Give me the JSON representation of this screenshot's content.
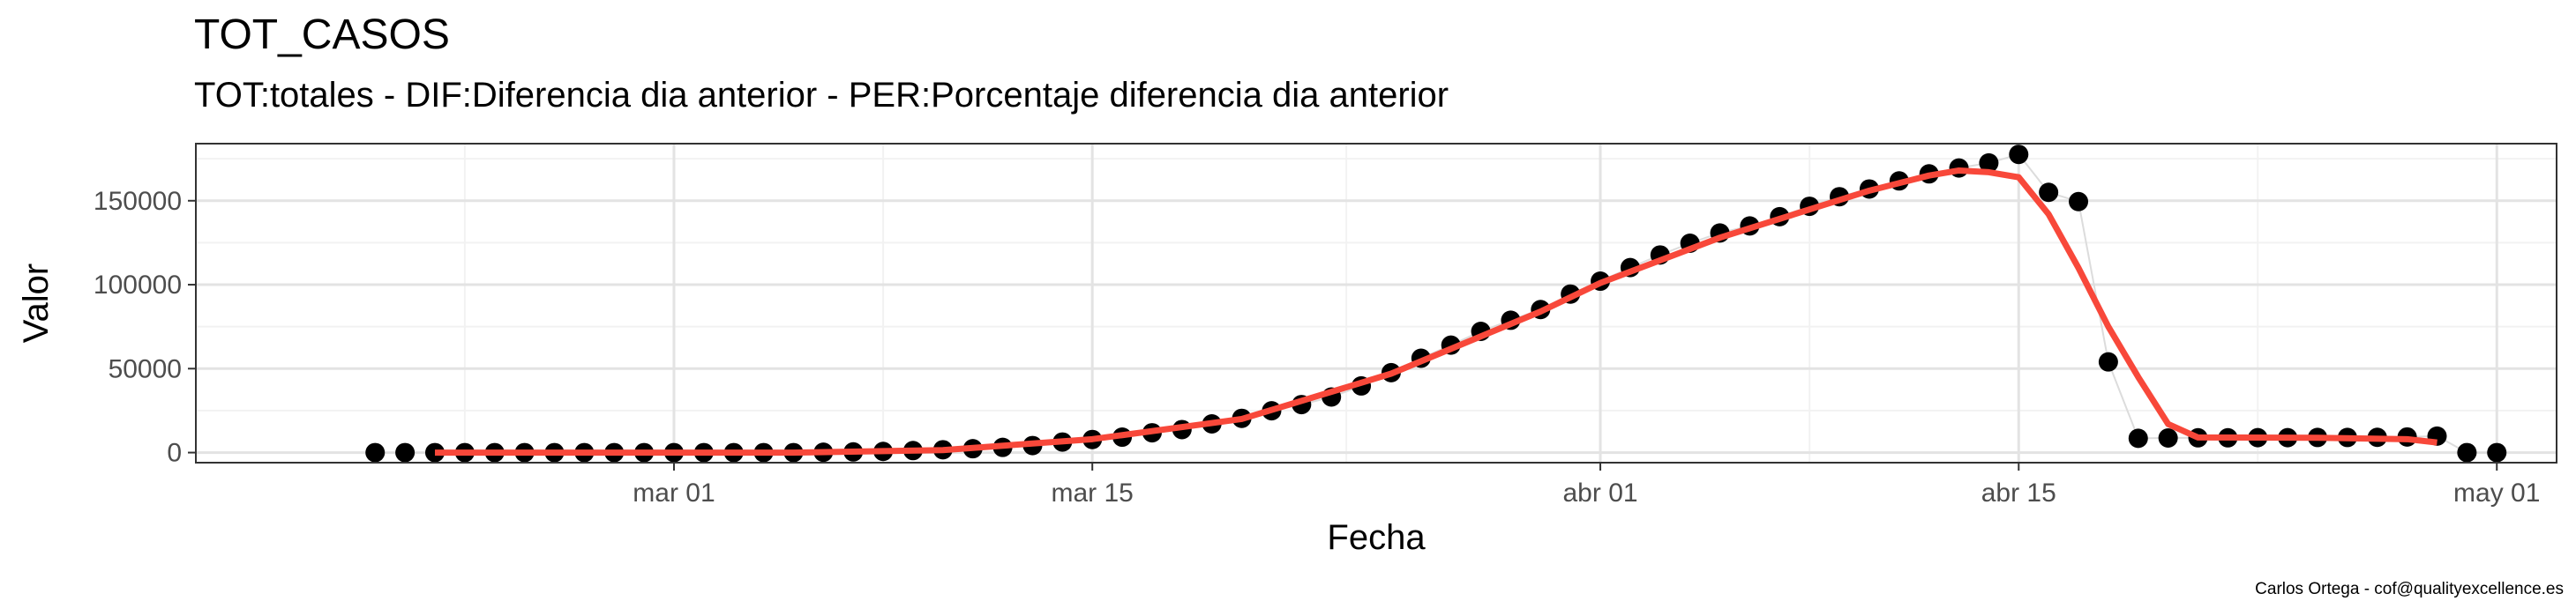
{
  "title": "TOT_CASOS",
  "subtitle": "TOT:totales - DIF:Diferencia dia anterior - PER:Porcentaje diferencia dia anterior",
  "caption": "Carlos Ortega - cof@qualityexcellence.es",
  "chart_data": {
    "type": "scatter",
    "title": "TOT_CASOS",
    "subtitle": "TOT:totales - DIF:Diferencia dia anterior - PER:Porcentaje diferencia dia anterior",
    "xlabel": "Fecha",
    "ylabel": "Valor",
    "x_type": "date",
    "xlim": [
      "2020-02-14",
      "2020-05-03"
    ],
    "ylim": [
      -6000,
      184000
    ],
    "x_ticks": [
      {
        "label": "mar 01",
        "date": "2020-03-01"
      },
      {
        "label": "mar 15",
        "date": "2020-03-15"
      },
      {
        "label": "abr 01",
        "date": "2020-04-01"
      },
      {
        "label": "abr 15",
        "date": "2020-04-15"
      },
      {
        "label": "may 01",
        "date": "2020-05-01"
      }
    ],
    "y_ticks": [
      0,
      50000,
      100000,
      150000
    ],
    "grid": true,
    "colors": {
      "points": "#000000",
      "smooth": "#f8483a",
      "connect": "#dcdcdc"
    },
    "series": [
      {
        "kind": "points",
        "points": [
          [
            "2020-02-20",
            0
          ],
          [
            "2020-02-21",
            0
          ],
          [
            "2020-02-22",
            0
          ],
          [
            "2020-02-23",
            0
          ],
          [
            "2020-02-24",
            0
          ],
          [
            "2020-02-25",
            0
          ],
          [
            "2020-02-26",
            0
          ],
          [
            "2020-02-27",
            0
          ],
          [
            "2020-02-28",
            0
          ],
          [
            "2020-02-29",
            0
          ],
          [
            "2020-03-01",
            0
          ],
          [
            "2020-03-02",
            0
          ],
          [
            "2020-03-03",
            0
          ],
          [
            "2020-03-04",
            0
          ],
          [
            "2020-03-05",
            0
          ],
          [
            "2020-03-06",
            200
          ],
          [
            "2020-03-07",
            400
          ],
          [
            "2020-03-08",
            700
          ],
          [
            "2020-03-09",
            1200
          ],
          [
            "2020-03-10",
            1700
          ],
          [
            "2020-03-11",
            2300
          ],
          [
            "2020-03-12",
            3100
          ],
          [
            "2020-03-13",
            4200
          ],
          [
            "2020-03-14",
            6300
          ],
          [
            "2020-03-15",
            7800
          ],
          [
            "2020-03-16",
            9200
          ],
          [
            "2020-03-17",
            11800
          ],
          [
            "2020-03-18",
            13700
          ],
          [
            "2020-03-19",
            17100
          ],
          [
            "2020-03-20",
            20400
          ],
          [
            "2020-03-21",
            24900
          ],
          [
            "2020-03-22",
            28600
          ],
          [
            "2020-03-23",
            33100
          ],
          [
            "2020-03-24",
            39700
          ],
          [
            "2020-03-25",
            47600
          ],
          [
            "2020-03-26",
            56200
          ],
          [
            "2020-03-27",
            64000
          ],
          [
            "2020-03-28",
            72200
          ],
          [
            "2020-03-29",
            78800
          ],
          [
            "2020-03-30",
            85200
          ],
          [
            "2020-03-31",
            94400
          ],
          [
            "2020-04-01",
            102100
          ],
          [
            "2020-04-02",
            110200
          ],
          [
            "2020-04-03",
            117700
          ],
          [
            "2020-04-04",
            124700
          ],
          [
            "2020-04-05",
            130800
          ],
          [
            "2020-04-06",
            135000
          ],
          [
            "2020-04-07",
            140500
          ],
          [
            "2020-04-08",
            146700
          ],
          [
            "2020-04-09",
            152400
          ],
          [
            "2020-04-10",
            157000
          ],
          [
            "2020-04-11",
            161800
          ],
          [
            "2020-04-12",
            166000
          ],
          [
            "2020-04-13",
            169500
          ],
          [
            "2020-04-14",
            172500
          ],
          [
            "2020-04-15",
            177600
          ],
          [
            "2020-04-16",
            155000
          ],
          [
            "2020-04-17",
            149500
          ],
          [
            "2020-04-18",
            54000
          ],
          [
            "2020-04-19",
            8500
          ],
          [
            "2020-04-20",
            8700
          ],
          [
            "2020-04-21",
            8800
          ],
          [
            "2020-04-22",
            8800
          ],
          [
            "2020-04-23",
            8900
          ],
          [
            "2020-04-24",
            8900
          ],
          [
            "2020-04-25",
            9000
          ],
          [
            "2020-04-26",
            9000
          ],
          [
            "2020-04-27",
            9100
          ],
          [
            "2020-04-28",
            9300
          ],
          [
            "2020-04-29",
            9800
          ],
          [
            "2020-04-30",
            0
          ],
          [
            "2020-05-01",
            0
          ]
        ]
      },
      {
        "kind": "smooth",
        "points": [
          [
            "2020-02-22",
            0
          ],
          [
            "2020-03-05",
            0
          ],
          [
            "2020-03-10",
            1500
          ],
          [
            "2020-03-15",
            8000
          ],
          [
            "2020-03-20",
            20000
          ],
          [
            "2020-03-25",
            47000
          ],
          [
            "2020-03-30",
            84000
          ],
          [
            "2020-04-01",
            101000
          ],
          [
            "2020-04-05",
            128000
          ],
          [
            "2020-04-10",
            156000
          ],
          [
            "2020-04-12",
            165000
          ],
          [
            "2020-04-13",
            168000
          ],
          [
            "2020-04-14",
            167000
          ],
          [
            "2020-04-15",
            164000
          ],
          [
            "2020-04-16",
            142000
          ],
          [
            "2020-04-17",
            110000
          ],
          [
            "2020-04-18",
            75000
          ],
          [
            "2020-04-19",
            45000
          ],
          [
            "2020-04-20",
            17000
          ],
          [
            "2020-04-21",
            9000
          ],
          [
            "2020-04-25",
            8800
          ],
          [
            "2020-04-28",
            8000
          ],
          [
            "2020-04-29",
            6000
          ]
        ]
      }
    ]
  }
}
